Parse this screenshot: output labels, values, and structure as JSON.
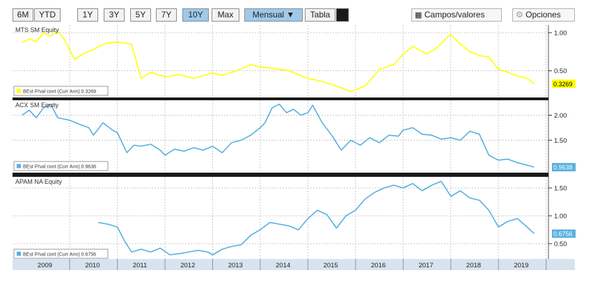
{
  "toolbar": {
    "ranges": [
      "6M",
      "YTD",
      "1Y",
      "3Y",
      "5Y",
      "7Y",
      "10Y",
      "Max"
    ],
    "active_range": "10Y",
    "frequency": "Mensual ▼",
    "table": "Tabla",
    "fields": "Campos/valores",
    "options": "Opciones"
  },
  "colors": {
    "mts": "#ffff00",
    "ack": "#58b0e0",
    "apam": "#58b0e0",
    "active_button": "#9ec9ea"
  },
  "chart_data": [
    {
      "type": "line",
      "title": "MTS SM Equity",
      "legend": "BEst P/val cont (Curr Ann) 0.3269",
      "last_value_label": "0.3269",
      "ticks": [
        "1.00",
        "0.50"
      ],
      "ylim": [
        0.15,
        1.1
      ],
      "x": [
        2009.0,
        2009.15,
        2009.3,
        2009.45,
        2009.6,
        2009.75,
        2009.9,
        2010.1,
        2010.3,
        2010.5,
        2010.75,
        2011.0,
        2011.3,
        2011.5,
        2011.7,
        2012.0,
        2012.3,
        2012.6,
        2013.0,
        2013.2,
        2013.5,
        2013.8,
        2014.0,
        2014.3,
        2014.6,
        2015.0,
        2015.3,
        2015.6,
        2015.9,
        2016.2,
        2016.5,
        2016.8,
        2017.0,
        2017.2,
        2017.5,
        2017.7,
        2018.0,
        2018.2,
        2018.4,
        2018.6,
        2018.8,
        2019.0,
        2019.2,
        2019.4,
        2019.6,
        2019.75
      ],
      "values": [
        0.87,
        0.92,
        0.88,
        1.0,
        0.95,
        1.02,
        0.9,
        0.65,
        0.73,
        0.78,
        0.86,
        0.88,
        0.85,
        0.4,
        0.48,
        0.42,
        0.45,
        0.4,
        0.47,
        0.44,
        0.5,
        0.58,
        0.55,
        0.53,
        0.5,
        0.4,
        0.36,
        0.3,
        0.23,
        0.3,
        0.52,
        0.58,
        0.72,
        0.82,
        0.72,
        0.8,
        0.98,
        0.85,
        0.75,
        0.7,
        0.68,
        0.52,
        0.48,
        0.43,
        0.4,
        0.33
      ]
    },
    {
      "type": "line",
      "title": "ACX SM Equity",
      "legend": "BEst P/val cont (Curr Ann) 0.9638",
      "last_value_label": "0.9638",
      "ticks": [
        "2.00",
        "1.50"
      ],
      "ylim": [
        0.85,
        2.3
      ],
      "x": [
        2009.0,
        2009.15,
        2009.3,
        2009.45,
        2009.6,
        2009.75,
        2010.0,
        2010.2,
        2010.4,
        2010.5,
        2010.7,
        2010.9,
        2011.0,
        2011.2,
        2011.35,
        2011.5,
        2011.7,
        2011.9,
        2012.0,
        2012.2,
        2012.4,
        2012.6,
        2012.8,
        2013.0,
        2013.2,
        2013.4,
        2013.6,
        2013.8,
        2014.0,
        2014.1,
        2014.25,
        2014.4,
        2014.55,
        2014.7,
        2014.85,
        2015.0,
        2015.1,
        2015.3,
        2015.5,
        2015.7,
        2015.9,
        2016.1,
        2016.3,
        2016.5,
        2016.7,
        2016.9,
        2017.0,
        2017.2,
        2017.4,
        2017.6,
        2017.8,
        2018.0,
        2018.2,
        2018.4,
        2018.6,
        2018.8,
        2019.0,
        2019.2,
        2019.4,
        2019.6,
        2019.75
      ],
      "values": [
        2.0,
        2.1,
        1.95,
        2.15,
        2.22,
        1.95,
        1.9,
        1.82,
        1.75,
        1.6,
        1.85,
        1.7,
        1.65,
        1.25,
        1.4,
        1.38,
        1.42,
        1.3,
        1.2,
        1.32,
        1.28,
        1.35,
        1.3,
        1.38,
        1.25,
        1.45,
        1.5,
        1.6,
        1.75,
        1.85,
        2.15,
        2.22,
        2.05,
        2.12,
        2.0,
        2.05,
        2.2,
        1.85,
        1.6,
        1.3,
        1.5,
        1.4,
        1.55,
        1.45,
        1.6,
        1.58,
        1.7,
        1.75,
        1.62,
        1.6,
        1.52,
        1.55,
        1.5,
        1.68,
        1.62,
        1.2,
        1.1,
        1.12,
        1.05,
        1.0,
        0.96
      ]
    },
    {
      "type": "line",
      "title": "APAM NA Equity",
      "legend": "BEst P/val cont (Curr Ann) 0.6756",
      "last_value_label": "0.6756",
      "ticks": [
        "1.50",
        "1.00",
        "0.50"
      ],
      "ylim": [
        0.2,
        1.7
      ],
      "x": [
        2010.6,
        2010.8,
        2011.0,
        2011.15,
        2011.3,
        2011.5,
        2011.7,
        2011.9,
        2012.1,
        2012.3,
        2012.5,
        2012.7,
        2012.9,
        2013.0,
        2013.2,
        2013.4,
        2013.6,
        2013.8,
        2014.0,
        2014.2,
        2014.4,
        2014.6,
        2014.8,
        2015.0,
        2015.2,
        2015.4,
        2015.6,
        2015.8,
        2016.0,
        2016.2,
        2016.4,
        2016.6,
        2016.8,
        2017.0,
        2017.2,
        2017.4,
        2017.6,
        2017.8,
        2018.0,
        2018.2,
        2018.4,
        2018.6,
        2018.8,
        2019.0,
        2019.2,
        2019.4,
        2019.6,
        2019.75
      ],
      "values": [
        0.88,
        0.85,
        0.8,
        0.55,
        0.35,
        0.4,
        0.35,
        0.42,
        0.3,
        0.32,
        0.35,
        0.38,
        0.35,
        0.3,
        0.4,
        0.45,
        0.48,
        0.65,
        0.75,
        0.88,
        0.85,
        0.82,
        0.75,
        0.95,
        1.1,
        1.02,
        0.78,
        1.0,
        1.1,
        1.3,
        1.42,
        1.5,
        1.55,
        1.5,
        1.58,
        1.45,
        1.55,
        1.62,
        1.35,
        1.45,
        1.32,
        1.28,
        1.1,
        0.8,
        0.9,
        0.95,
        0.8,
        0.68
      ]
    }
  ],
  "x_axis": {
    "labels": [
      "2009",
      "2010",
      "2011",
      "2012",
      "2013",
      "2014",
      "2015",
      "2016",
      "2017",
      "2018",
      "2019"
    ]
  }
}
